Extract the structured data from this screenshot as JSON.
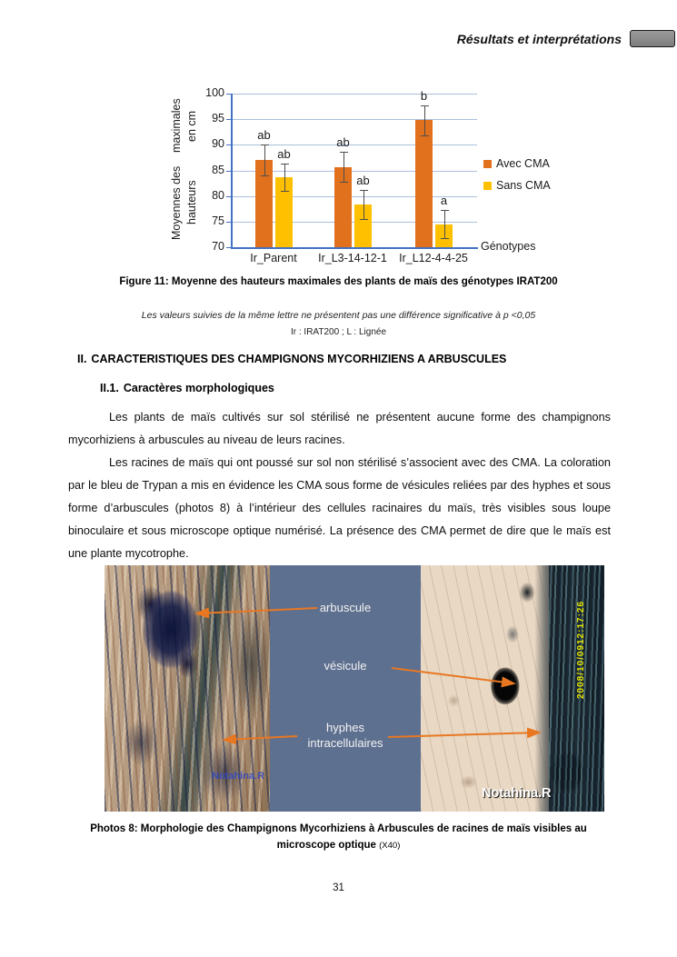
{
  "header": {
    "title": "Résultats et interprétations"
  },
  "chart_data": {
    "type": "bar",
    "categories": [
      "Ir_Parent",
      "Ir_L3-14-12-1",
      "Ir_L12-4-4-25"
    ],
    "series": [
      {
        "name": "Avec CMA",
        "color": "#E2711D",
        "values": [
          87,
          85.7,
          94.8
        ],
        "errors": [
          3.0,
          2.9,
          2.9
        ],
        "letters": [
          "ab",
          "ab",
          "b"
        ]
      },
      {
        "name": "Sans CMA",
        "color": "#FFC000",
        "values": [
          83.7,
          78.3,
          74.5
        ],
        "errors": [
          2.7,
          2.8,
          2.8
        ],
        "letters": [
          "ab",
          "ab",
          "a"
        ]
      }
    ],
    "ylabel_line1": "Moyennes des hauteurs",
    "ylabel_line2": "maximales en cm",
    "xlabel": "Génotypes",
    "ylim": [
      70,
      100
    ],
    "ytick_step": 5,
    "grid": true,
    "legend_position": "right"
  },
  "figure": {
    "caption": "Figure 11: Moyenne des hauteurs maximales des plants de maïs des génotypes IRAT200",
    "note_line1": "Les valeurs suivies de la même lettre ne présentent pas une différence significative à p <0,05",
    "note_line2": "Ir : IRAT200 ; L : Lignée"
  },
  "section": {
    "number": "II.",
    "title": "CARACTERISTIQUES DES CHAMPIGNONS MYCORHIZIENS A ARBUSCULES"
  },
  "subsection": {
    "number": "II.1.",
    "title": "Caractères morphologiques"
  },
  "paragraphs": [
    "Les plants de maïs cultivés sur sol stérilisé ne présentent aucune forme des champignons mycorhiziens à arbuscules au niveau de leurs racines.",
    "Les racines de maïs qui ont poussé sur sol non stérilisé s’associent avec des CMA. La coloration par le bleu de Trypan a mis en évidence les CMA sous forme de vésicules reliées par des hyphes et sous forme d’arbuscules (photos 8) à l’intérieur des cellules racinaires du maïs, très visibles sous loupe binoculaire et sous microscope optique numérisé. La présence des CMA permet de dire que le maïs est une plante mycotrophe."
  ],
  "photos": {
    "label_arbuscule": "arbuscule",
    "label_vesicule": "vésicule",
    "label_hyphes_line1": "hyphes",
    "label_hyphes_line2": "intracellulaires",
    "watermark_left": "Notahina.R",
    "watermark_right": "Notahina.R",
    "timestamp_date": "2008/10/09",
    "timestamp_time": "12:17:26",
    "caption_line1": "Photos 8: Morphologie des Champignons Mycorhiziens à Arbuscules de racines de maïs visibles au",
    "caption_line2": "microscope optique",
    "caption_magnification": "(X40)"
  },
  "page": {
    "number": "31"
  },
  "colors": {
    "accent_orange": "#E2711D",
    "accent_yellow": "#FFC000",
    "axis_blue": "#4472C4",
    "grid_blue": "#AABFDD",
    "panel_slate": "#5E7090",
    "arrow_orange": "#E87722",
    "timestamp_yellow": "#E5E500",
    "header_box_gray": "#8B8B8B"
  }
}
